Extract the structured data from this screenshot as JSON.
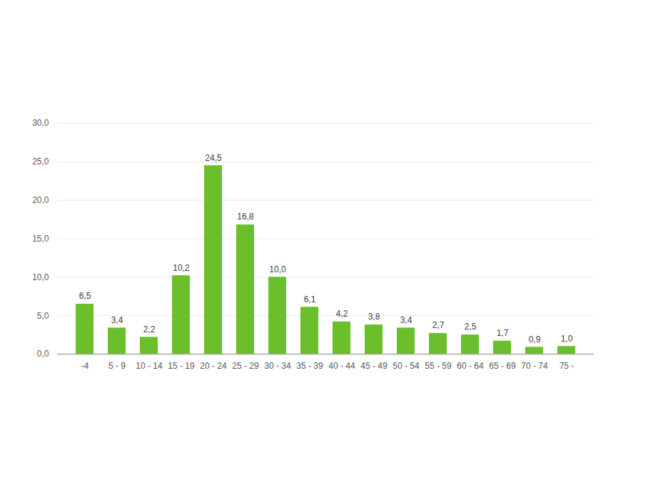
{
  "chart_data": {
    "type": "bar",
    "categories": [
      "-4",
      "5 - 9",
      "10 - 14",
      "15 - 19",
      "20 - 24",
      "25 - 29",
      "30 - 34",
      "35 - 39",
      "40 - 44",
      "45 - 49",
      "50 - 54",
      "55 - 59",
      "60 - 64",
      "65 - 69",
      "70 - 74",
      "75 -"
    ],
    "values": [
      6.5,
      3.4,
      2.2,
      10.2,
      24.5,
      16.8,
      10.0,
      6.1,
      4.2,
      3.8,
      3.4,
      2.7,
      2.5,
      1.7,
      0.9,
      1.0
    ],
    "value_labels": [
      "6,5",
      "3,4",
      "2,2",
      "10,2",
      "24,5",
      "16,8",
      "10,0",
      "6,1",
      "4,2",
      "3,8",
      "3,4",
      "2,7",
      "2,5",
      "1,7",
      "0,9",
      "1,0"
    ],
    "color": "#6abf2b",
    "ylim": [
      0,
      30
    ],
    "yticks": [
      {
        "value": 0,
        "label": "0,0"
      },
      {
        "value": 5,
        "label": "5,0"
      },
      {
        "value": 10,
        "label": "10,0"
      },
      {
        "value": 15,
        "label": "15,0"
      },
      {
        "value": 20,
        "label": "20,0"
      },
      {
        "value": 25,
        "label": "25,0"
      },
      {
        "value": 30,
        "label": "30,0"
      }
    ],
    "grid": true,
    "data_labels": true
  }
}
